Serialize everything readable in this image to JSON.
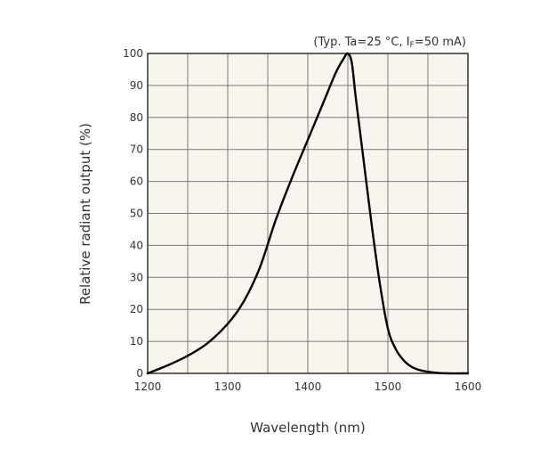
{
  "chart_data": {
    "type": "line",
    "title": "",
    "annotation": "(Typ. Ta=25 °C, I",
    "annotation_subscript": "F",
    "annotation_tail": "=50 mA)",
    "xlabel": "Wavelength (nm)",
    "ylabel": "Relative radiant output (%)",
    "xlim": [
      1200,
      1600
    ],
    "ylim": [
      0,
      100
    ],
    "x_ticks": [
      1200,
      1300,
      1400,
      1500,
      1600
    ],
    "y_ticks": [
      0,
      10,
      20,
      30,
      40,
      50,
      60,
      70,
      80,
      90,
      100
    ],
    "x_grid_step": 50,
    "y_grid_step": 10,
    "grid": true,
    "colors": {
      "background": "#f7f5ee",
      "line": "#000000",
      "grid": "#7a7a7a"
    },
    "series": [
      {
        "name": "Relative radiant output",
        "x": [
          1200,
          1225,
          1250,
          1275,
          1300,
          1320,
          1340,
          1360,
          1380,
          1400,
          1420,
          1435,
          1445,
          1450,
          1455,
          1460,
          1470,
          1480,
          1490,
          1500,
          1510,
          1520,
          1530,
          1540,
          1550,
          1560,
          1575,
          1590,
          1600
        ],
        "y": [
          0,
          2.5,
          5.5,
          9.5,
          15.5,
          22.5,
          33,
          48,
          61,
          73,
          85,
          94,
          98.5,
          100,
          97,
          86,
          66,
          46,
          28,
          14,
          7.5,
          4,
          2,
          1,
          0.5,
          0.2,
          0,
          0,
          0
        ]
      }
    ]
  }
}
